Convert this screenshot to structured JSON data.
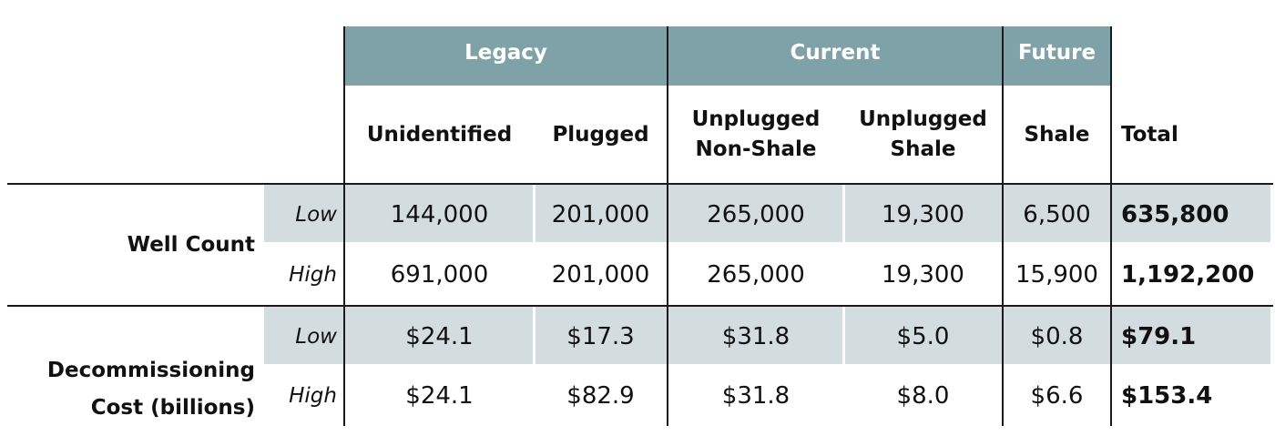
{
  "groups": {
    "legacy": "Legacy",
    "current": "Current",
    "future": "Future"
  },
  "columns": {
    "unidentified": "Unidentified",
    "plugged": "Plugged",
    "unplugged_non_shale_1": "Unplugged",
    "unplugged_non_shale_2": "Non-Shale",
    "unplugged_shale_1": "Unplugged",
    "unplugged_shale_2": "Shale",
    "shale": "Shale",
    "total": "Total"
  },
  "sections": {
    "well_count": "Well Count",
    "cost_1": "Decommissioning",
    "cost_2": "Cost (billions)"
  },
  "rows": [
    {
      "level": "Low",
      "values": [
        "144,000",
        "201,000",
        "265,000",
        "19,300",
        "6,500"
      ],
      "total": "635,800"
    },
    {
      "level": "High",
      "values": [
        "691,000",
        "201,000",
        "265,000",
        "19,300",
        "15,900"
      ],
      "total": "1,192,200"
    },
    {
      "level": "Low",
      "values": [
        "$24.1",
        "$17.3",
        "$31.8",
        "$5.0",
        "$0.8"
      ],
      "total": "$79.1"
    },
    {
      "level": "High",
      "values": [
        "$24.1",
        "$82.9",
        "$31.8",
        "$8.0",
        "$6.6"
      ],
      "total": "$153.4"
    }
  ]
}
